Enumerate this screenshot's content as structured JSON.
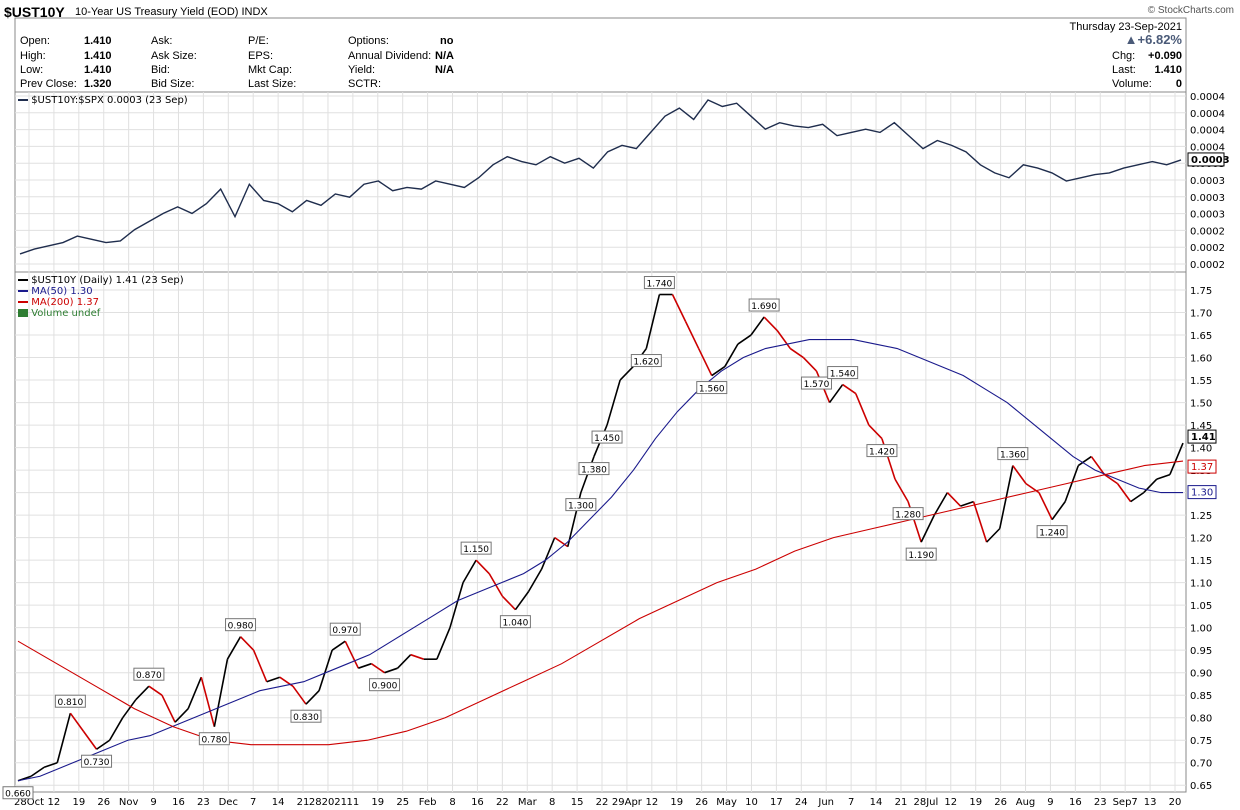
{
  "header": {
    "symbol": "$UST10Y",
    "description": "10-Year US Treasury Yield (EOD) INDX",
    "brand": "© StockCharts.com",
    "date": "Thursday 23-Sep-2021",
    "pct_change": "▲+6.82%",
    "fields": {
      "open_label": "Open:",
      "open": "1.410",
      "high_label": "High:",
      "high": "1.410",
      "low_label": "Low:",
      "low": "1.410",
      "prevclose_label": "Prev Close:",
      "prevclose": "1.320",
      "ask_label": "Ask:",
      "asksize_label": "Ask Size:",
      "bid_label": "Bid:",
      "bidsize_label": "Bid Size:",
      "pe_label": "P/E:",
      "eps_label": "EPS:",
      "mktcap_label": "Mkt Cap:",
      "lastsize_label": "Last Size:",
      "options_label": "Options:",
      "options": "no",
      "dividend_label": "Annual Dividend:",
      "dividend": "N/A",
      "yield_label": "Yield:",
      "yield": "N/A",
      "sctr_label": "SCTR:",
      "chg_label": "Chg:",
      "chg": "+0.090",
      "last_label": "Last:",
      "last": "1.410",
      "volume_label": "Volume:",
      "volume": "0"
    }
  },
  "colors": {
    "price_up": "#000000",
    "price_down": "#cc0000",
    "ma50": "#1a1a8c",
    "ma200": "#cc0000",
    "ratio": "#1f2d4d",
    "grid": "#e0e0e0",
    "volume": "#2e7d32"
  },
  "chart_data": [
    {
      "type": "line",
      "legend": "$UST10Y:$SPX 0.0003 (23 Sep)",
      "last_label": "0.0003",
      "y_tick_labels": [
        "0.0004",
        "0.0004",
        "0.0004",
        "0.0004",
        "0.0003",
        "0.0003",
        "0.0003",
        "0.0003",
        "0.0002",
        "0.0002",
        "0.0002"
      ],
      "shape": [
        0.05,
        0.08,
        0.1,
        0.12,
        0.16,
        0.14,
        0.12,
        0.13,
        0.2,
        0.25,
        0.3,
        0.34,
        0.3,
        0.36,
        0.45,
        0.28,
        0.48,
        0.38,
        0.36,
        0.31,
        0.38,
        0.35,
        0.42,
        0.4,
        0.48,
        0.5,
        0.44,
        0.46,
        0.45,
        0.5,
        0.48,
        0.46,
        0.52,
        0.6,
        0.65,
        0.62,
        0.6,
        0.65,
        0.61,
        0.64,
        0.58,
        0.68,
        0.72,
        0.7,
        0.8,
        0.9,
        0.95,
        0.88,
        1.0,
        0.96,
        0.98,
        0.9,
        0.82,
        0.86,
        0.84,
        0.83,
        0.85,
        0.78,
        0.8,
        0.82,
        0.8,
        0.86,
        0.78,
        0.7,
        0.75,
        0.72,
        0.68,
        0.6,
        0.55,
        0.52,
        0.6,
        0.58,
        0.55,
        0.5,
        0.52,
        0.54,
        0.55,
        0.58,
        0.6,
        0.62,
        0.6,
        0.63
      ],
      "x_tick_labels": [
        "28Oct",
        "12",
        "19",
        "26",
        "Nov",
        "9",
        "16",
        "23",
        "Dec",
        "7",
        "14",
        "21",
        "282021",
        "11",
        "19",
        "25",
        "Feb",
        "8",
        "16",
        "22",
        "Mar",
        "8",
        "15",
        "22",
        "29Apr",
        "12",
        "19",
        "26",
        "May",
        "10",
        "17",
        "24",
        "Jun",
        "7",
        "14",
        "21",
        "28Jul",
        "12",
        "19",
        "26",
        "Aug",
        "9",
        "16",
        "23",
        "Sep7",
        "13",
        "20"
      ]
    },
    {
      "type": "line",
      "legend_items": [
        "$UST10Y (Daily) 1.41 (23 Sep)",
        "MA(50) 1.30",
        "MA(200) 1.37",
        "Volume undef"
      ],
      "ylim": [
        0.635,
        1.79
      ],
      "y_ticks": [
        0.65,
        0.7,
        0.75,
        0.8,
        0.85,
        0.9,
        0.95,
        1.0,
        1.05,
        1.1,
        1.15,
        1.2,
        1.25,
        1.3,
        1.35,
        1.4,
        1.45,
        1.5,
        1.55,
        1.6,
        1.65,
        1.7,
        1.75
      ],
      "y_tick_labels": [
        "0.65",
        "0.70",
        "0.75",
        "0.80",
        "0.85",
        "0.90",
        "0.95",
        "1.00",
        "1.05",
        "1.10",
        "1.15",
        "1.20",
        "1.25",
        "1.30",
        "1.35",
        "1.40",
        "1.45",
        "1.50",
        "1.55",
        "1.60",
        "1.65",
        "1.70",
        "1.75"
      ],
      "last_labels": [
        "1.41",
        "1.37",
        "1.30"
      ],
      "series": [
        {
          "name": "$UST10Y",
          "values": [
            0.66,
            0.67,
            0.69,
            0.7,
            0.81,
            0.77,
            0.73,
            0.75,
            0.8,
            0.84,
            0.87,
            0.85,
            0.79,
            0.82,
            0.89,
            0.78,
            0.93,
            0.98,
            0.95,
            0.88,
            0.89,
            0.87,
            0.83,
            0.86,
            0.95,
            0.97,
            0.91,
            0.92,
            0.9,
            0.91,
            0.94,
            0.93,
            0.93,
            1.0,
            1.1,
            1.15,
            1.12,
            1.07,
            1.04,
            1.08,
            1.13,
            1.2,
            1.18,
            1.3,
            1.38,
            1.45,
            1.55,
            1.58,
            1.62,
            1.74,
            1.74,
            1.68,
            1.62,
            1.56,
            1.58,
            1.63,
            1.65,
            1.69,
            1.66,
            1.62,
            1.6,
            1.57,
            1.5,
            1.54,
            1.52,
            1.45,
            1.42,
            1.33,
            1.28,
            1.19,
            1.25,
            1.3,
            1.27,
            1.28,
            1.19,
            1.22,
            1.36,
            1.32,
            1.3,
            1.24,
            1.28,
            1.36,
            1.38,
            1.34,
            1.32,
            1.28,
            1.3,
            1.33,
            1.34,
            1.41
          ]
        },
        {
          "name": "MA(50)",
          "values": [
            0.66,
            0.67,
            0.69,
            0.71,
            0.73,
            0.75,
            0.76,
            0.78,
            0.8,
            0.82,
            0.84,
            0.86,
            0.87,
            0.88,
            0.9,
            0.92,
            0.94,
            0.97,
            1.0,
            1.03,
            1.06,
            1.08,
            1.1,
            1.12,
            1.15,
            1.19,
            1.24,
            1.29,
            1.35,
            1.42,
            1.48,
            1.53,
            1.57,
            1.6,
            1.62,
            1.63,
            1.64,
            1.64,
            1.64,
            1.63,
            1.62,
            1.6,
            1.58,
            1.56,
            1.53,
            1.5,
            1.46,
            1.42,
            1.38,
            1.35,
            1.33,
            1.31,
            1.3,
            1.3
          ]
        },
        {
          "name": "MA(200)",
          "values": [
            0.97,
            0.92,
            0.87,
            0.82,
            0.78,
            0.75,
            0.74,
            0.74,
            0.74,
            0.75,
            0.77,
            0.8,
            0.84,
            0.88,
            0.92,
            0.97,
            1.02,
            1.06,
            1.1,
            1.13,
            1.17,
            1.2,
            1.22,
            1.24,
            1.26,
            1.28,
            1.3,
            1.32,
            1.34,
            1.36,
            1.37
          ]
        }
      ],
      "annotations": [
        "0.660",
        "0.810",
        "0.730",
        "0.870",
        "0.780",
        "0.980",
        "0.830",
        "0.970",
        "0.900",
        "1.150",
        "1.040",
        "1.740",
        "1.620",
        "1.560",
        "1.690",
        "1.570",
        "1.450",
        "1.540",
        "1.420",
        "1.300",
        "1.190",
        "1.360",
        "1.240",
        "1.380",
        "1.280"
      ],
      "x_tick_labels": [
        "28Oct",
        "12",
        "19",
        "26",
        "Nov",
        "9",
        "16",
        "23",
        "Dec",
        "7",
        "14",
        "21",
        "282021",
        "11",
        "19",
        "25",
        "Feb",
        "8",
        "16",
        "22",
        "Mar",
        "8",
        "15",
        "22",
        "29Apr",
        "12",
        "19",
        "26",
        "May",
        "10",
        "17",
        "24",
        "Jun",
        "7",
        "14",
        "21",
        "28Jul",
        "12",
        "19",
        "26",
        "Aug",
        "9",
        "16",
        "23",
        "Sep7",
        "13",
        "20"
      ]
    }
  ]
}
